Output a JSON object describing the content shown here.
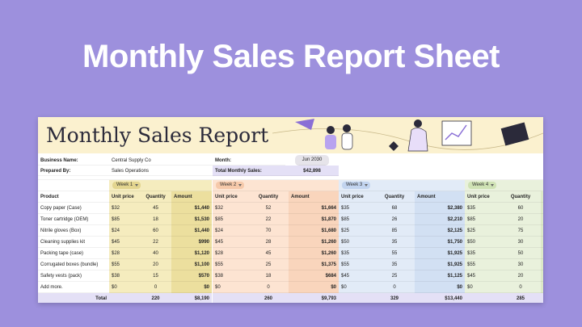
{
  "header": {
    "title": "Monthly Sales Report Sheet"
  },
  "sheet": {
    "title": "Monthly Sales Report",
    "info": {
      "business_name_label": "Business Name:",
      "business_name": "Central Supply Co",
      "prepared_by_label": "Prepared By:",
      "prepared_by": "Sales Operations",
      "month_label": "Month:",
      "month": "Jun 2030",
      "total_label": "Total Monthly Sales:",
      "total": "$42,898"
    },
    "weeks": [
      "Week 1",
      "Week 2",
      "Week 3",
      "Week 4"
    ],
    "columns": {
      "product": "Product",
      "unit_price": "Unit price",
      "quantity": "Quantity",
      "amount": "Amount"
    },
    "rows": [
      {
        "product": "Copy paper (Case)",
        "weeks": [
          [
            "$32",
            "45",
            "$1,440"
          ],
          [
            "$32",
            "52",
            "$1,664"
          ],
          [
            "$35",
            "68",
            "$2,380"
          ],
          [
            "$35",
            "60"
          ]
        ]
      },
      {
        "product": "Toner cartridge (OEM)",
        "weeks": [
          [
            "$85",
            "18",
            "$1,530"
          ],
          [
            "$85",
            "22",
            "$1,870"
          ],
          [
            "$85",
            "26",
            "$2,210"
          ],
          [
            "$85",
            "20"
          ]
        ]
      },
      {
        "product": "Nitrile gloves (Box)",
        "weeks": [
          [
            "$24",
            "60",
            "$1,440"
          ],
          [
            "$24",
            "70",
            "$1,680"
          ],
          [
            "$25",
            "85",
            "$2,125"
          ],
          [
            "$25",
            "75"
          ]
        ]
      },
      {
        "product": "Cleaning supplies kit",
        "weeks": [
          [
            "$45",
            "22",
            "$990"
          ],
          [
            "$45",
            "28",
            "$1,260"
          ],
          [
            "$50",
            "35",
            "$1,750"
          ],
          [
            "$50",
            "30"
          ]
        ]
      },
      {
        "product": "Packing tape (case)",
        "weeks": [
          [
            "$28",
            "40",
            "$1,120"
          ],
          [
            "$28",
            "45",
            "$1,260"
          ],
          [
            "$35",
            "55",
            "$1,925"
          ],
          [
            "$35",
            "50"
          ]
        ]
      },
      {
        "product": "Corrugated boxes (bundle)",
        "weeks": [
          [
            "$55",
            "20",
            "$1,100"
          ],
          [
            "$55",
            "25",
            "$1,375"
          ],
          [
            "$55",
            "35",
            "$1,925"
          ],
          [
            "$55",
            "30"
          ]
        ]
      },
      {
        "product": "Safety vests (pack)",
        "weeks": [
          [
            "$38",
            "15",
            "$570"
          ],
          [
            "$38",
            "18",
            "$684"
          ],
          [
            "$45",
            "25",
            "$1,125"
          ],
          [
            "$45",
            "20"
          ]
        ]
      },
      {
        "product": "Add more.",
        "weeks": [
          [
            "$0",
            "0",
            "$0"
          ],
          [
            "$0",
            "0",
            "$0"
          ],
          [
            "$0",
            "0",
            "$0"
          ],
          [
            "$0",
            "0"
          ]
        ]
      }
    ],
    "total": {
      "label": "Total",
      "weeks": [
        [
          "220",
          "$8,190"
        ],
        [
          "260",
          "$9,793"
        ],
        [
          "329",
          "$13,440"
        ],
        [
          "285"
        ]
      ]
    }
  }
}
